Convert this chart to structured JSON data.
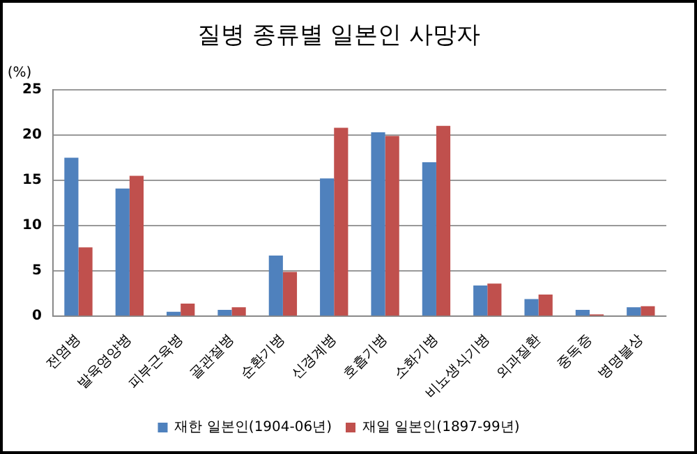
{
  "chart_data": {
    "type": "bar",
    "title": "질병 종류별 일본인 사망자",
    "ylabel": "(%)",
    "categories": [
      "전염병",
      "발육영양병",
      "피부근육병",
      "골관절병",
      "순환기병",
      "신경계병",
      "호흡기병",
      "소화기병",
      "비뇨생식기병",
      "외과질환",
      "중독증",
      "병명불상"
    ],
    "series": [
      {
        "name": "재한 일본인(1904-06년)",
        "color": "#4f81bd",
        "values": [
          17.5,
          14.1,
          0.5,
          0.7,
          6.7,
          15.2,
          20.3,
          17.0,
          3.4,
          1.9,
          0.7,
          1.0
        ]
      },
      {
        "name": "재일 일본인(1897-99년)",
        "color": "#c0504d",
        "values": [
          7.6,
          15.5,
          1.4,
          1.0,
          4.9,
          20.8,
          19.9,
          21.0,
          3.6,
          2.4,
          0.2,
          1.1
        ]
      }
    ],
    "ylim": [
      0,
      25
    ],
    "yticks": [
      0,
      5,
      10,
      15,
      20,
      25
    ],
    "grid": "y",
    "legend": "bottom"
  }
}
